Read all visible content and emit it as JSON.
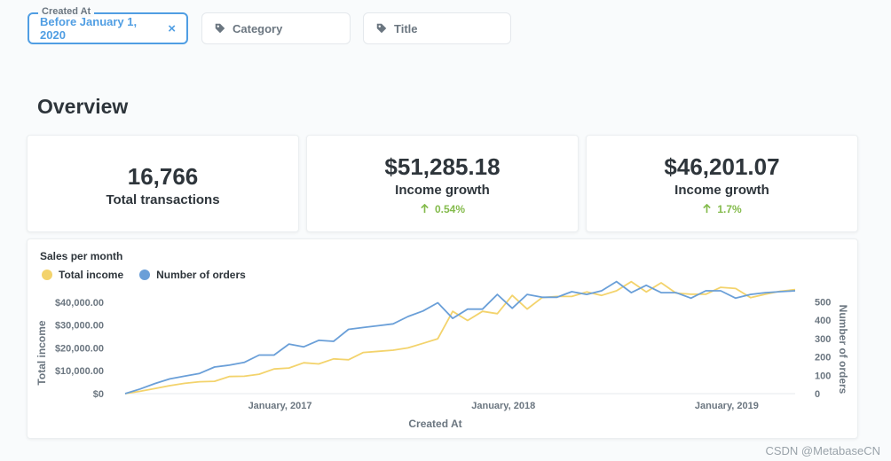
{
  "filters": [
    {
      "legend": "Created At",
      "value": "Before January 1, 2020",
      "active": true
    },
    {
      "value": "Category"
    },
    {
      "value": "Title"
    }
  ],
  "overview": {
    "title": "Overview"
  },
  "scalars": [
    {
      "value": "16,766",
      "label": "Total transactions"
    },
    {
      "value": "$51,285.18",
      "label": "Income growth",
      "delta": "0.54%"
    },
    {
      "value": "$46,201.07",
      "label": "Income growth",
      "delta": "1.7%"
    }
  ],
  "colors": {
    "income": "#f3d36c",
    "orders": "#6a9fd8",
    "accent": "#509ee3",
    "up": "#84bb4c"
  },
  "chart_data": {
    "type": "line",
    "title": "Sales per month",
    "xlabel": "Created At",
    "ylabel": "Total income",
    "y2label": "Number of orders",
    "x_ticks": [
      "January, 2017",
      "January, 2018",
      "January, 2019"
    ],
    "y_ticks": [
      "$0",
      "$10,000.00",
      "$20,000.00",
      "$30,000.00",
      "$40,000.00"
    ],
    "y2_ticks": [
      "0",
      "100",
      "200",
      "300",
      "400",
      "500"
    ],
    "ylim": [
      0,
      45000
    ],
    "y2lim": [
      0,
      560
    ],
    "legend": "top-left",
    "series": [
      {
        "name": "Total income",
        "axis": "left",
        "values": [
          0,
          1000,
          2200,
          3500,
          4500,
          5200,
          5400,
          7500,
          7600,
          8500,
          10800,
          11200,
          13500,
          13000,
          15200,
          14800,
          18000,
          18500,
          19000,
          20000,
          22000,
          24000,
          36000,
          32000,
          36000,
          35000,
          43000,
          37000,
          42000,
          42500,
          42500,
          44500,
          43000,
          45000,
          49000,
          44500,
          48500,
          44000,
          43500,
          43500,
          46500,
          46000,
          42000,
          43500,
          44800,
          45500
        ]
      },
      {
        "name": "Number of orders",
        "axis": "right",
        "values": [
          0,
          25,
          55,
          80,
          95,
          110,
          145,
          155,
          170,
          210,
          210,
          270,
          255,
          290,
          285,
          350,
          360,
          370,
          380,
          420,
          450,
          495,
          410,
          460,
          460,
          540,
          465,
          540,
          525,
          525,
          555,
          540,
          560,
          610,
          550,
          590,
          550,
          550,
          520,
          560,
          560,
          520,
          540,
          550,
          555,
          560
        ]
      }
    ]
  },
  "watermark": "CSDN @MetabaseCN"
}
